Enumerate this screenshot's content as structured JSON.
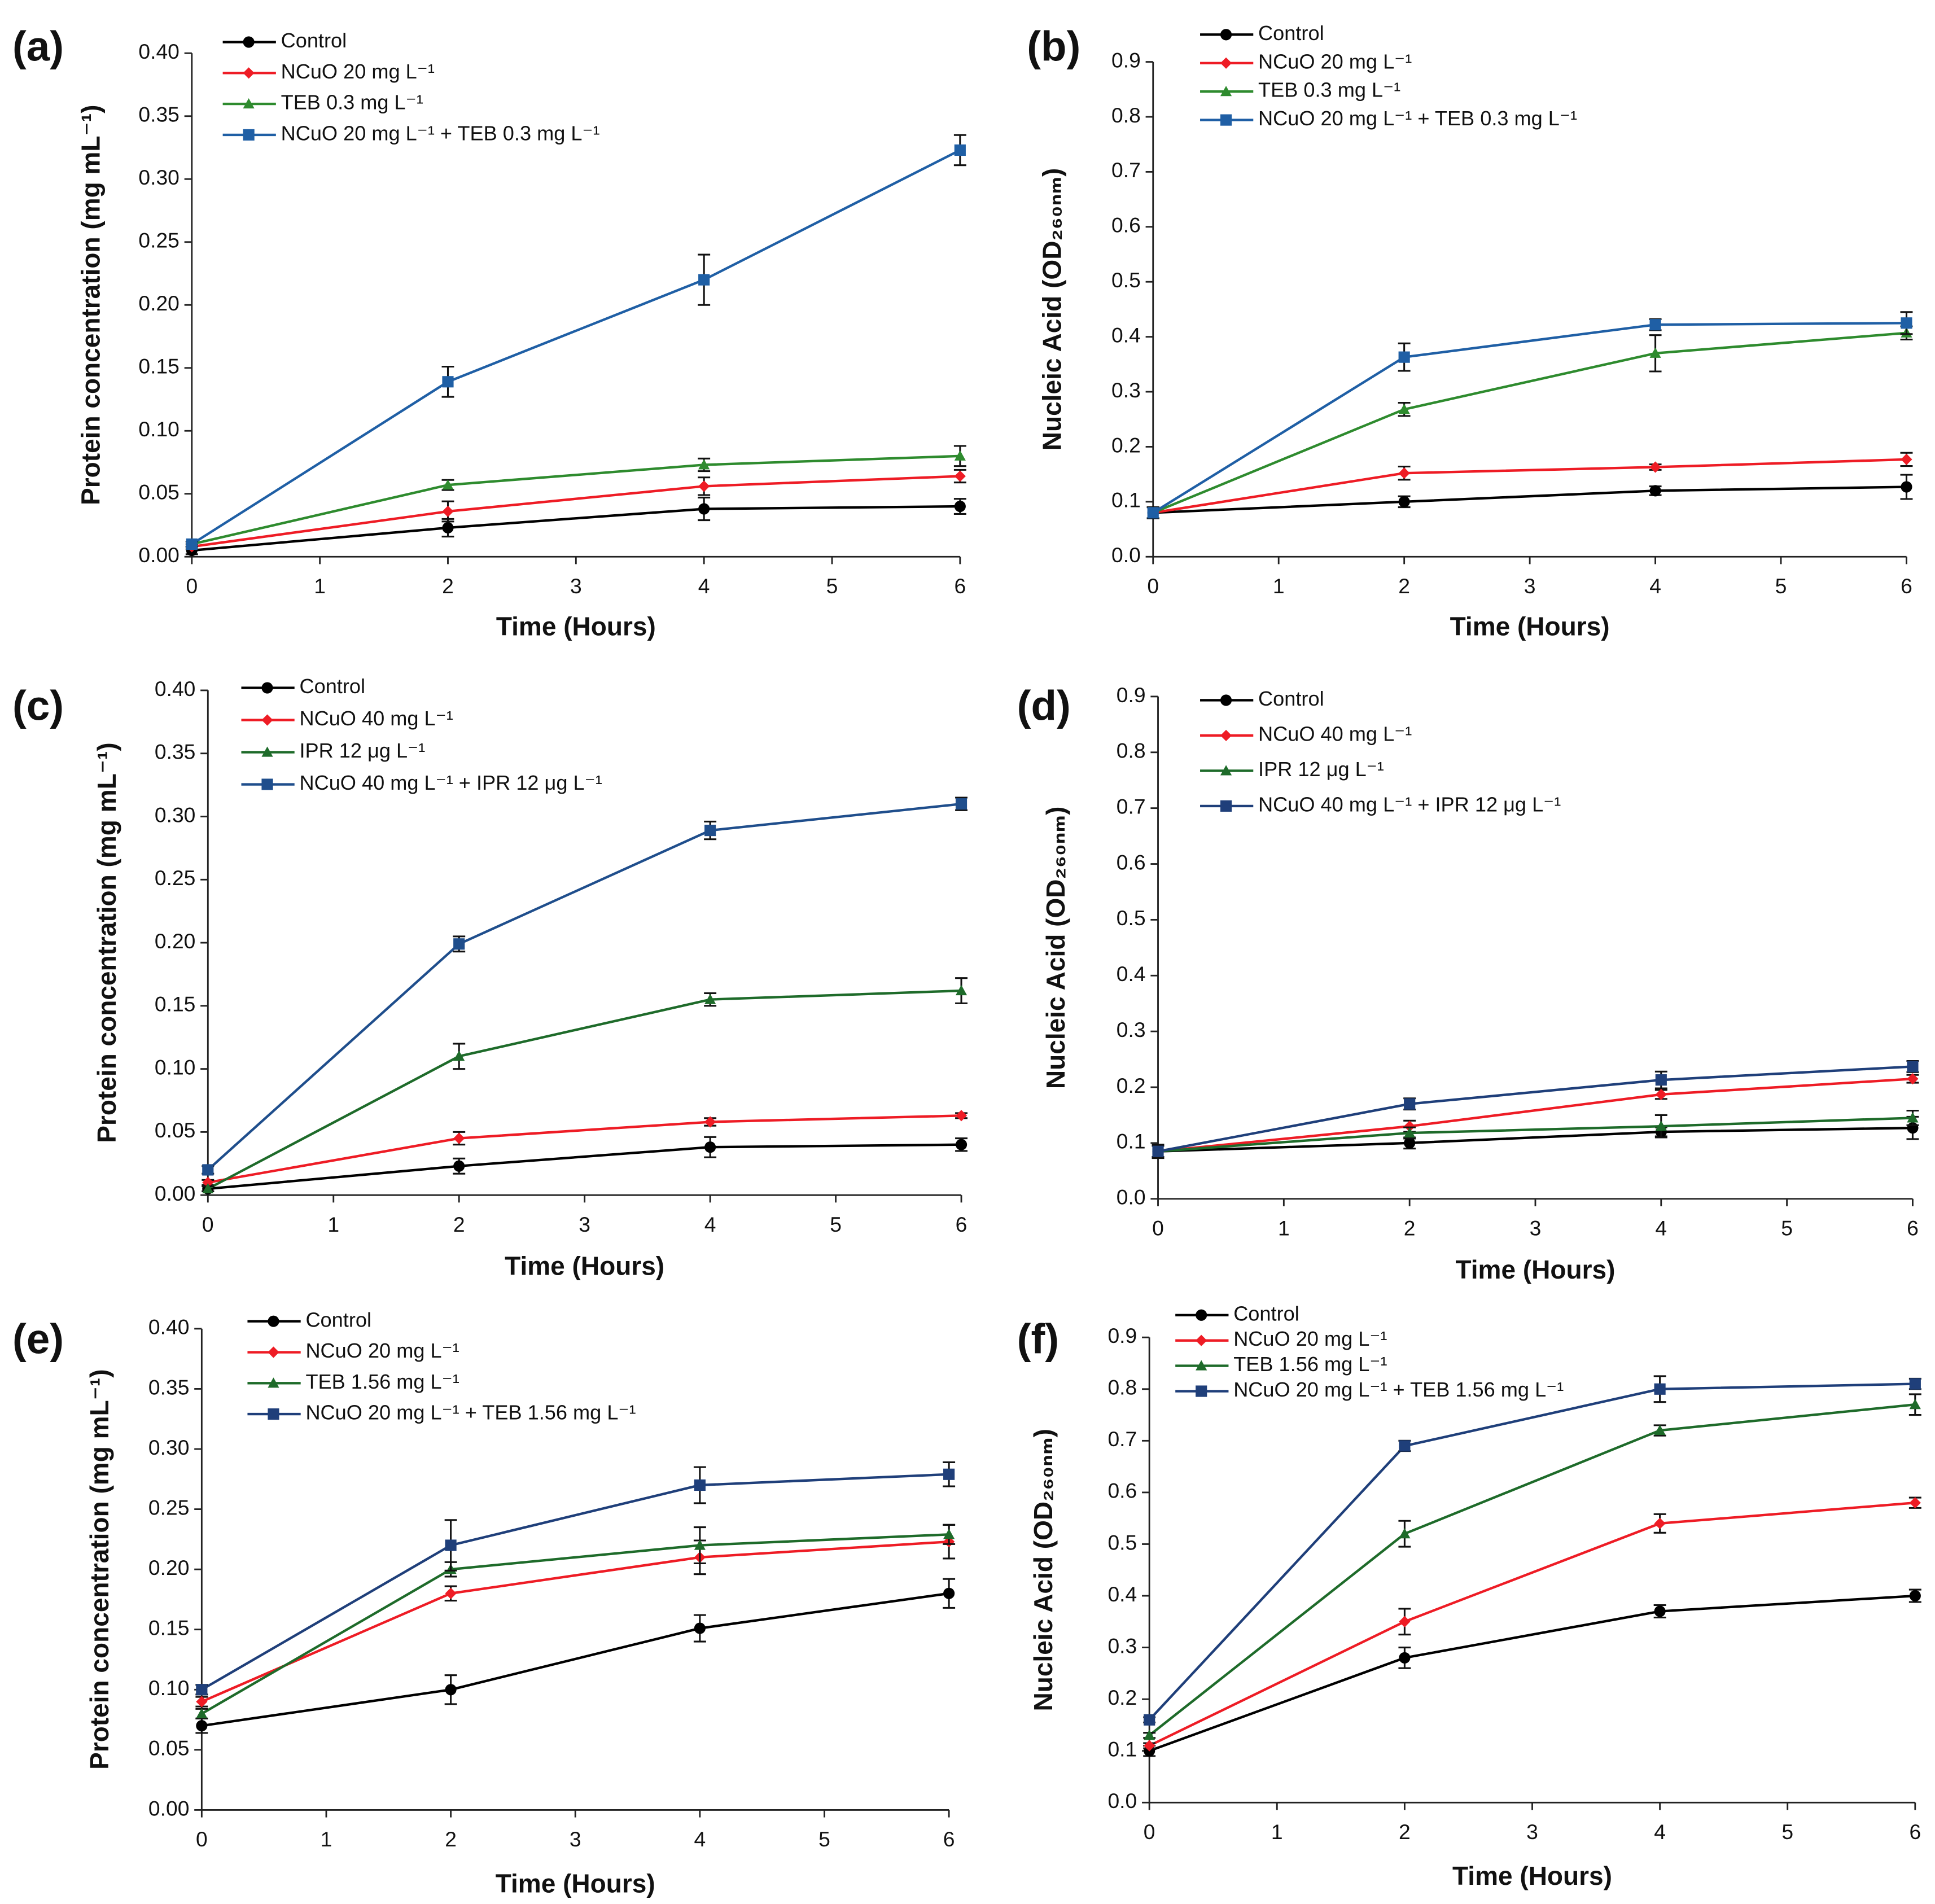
{
  "chart_data": [
    {
      "type": "line",
      "label": "(a)",
      "xlabel": "Time (Hours)",
      "ylabel": "Protein concentration (mg mL⁻¹)",
      "x": [
        0,
        2,
        4,
        6
      ],
      "xlim": [
        0,
        6
      ],
      "xticks": [
        0,
        1,
        2,
        3,
        4,
        5,
        6
      ],
      "ylim": [
        0,
        0.4
      ],
      "yticks": [
        {
          "value": 0,
          "label": "0.00"
        },
        0.05,
        {
          "value": 0.1,
          "label": "0.10"
        },
        0.15,
        {
          "value": 0.2,
          "label": "0.20"
        },
        0.25,
        {
          "value": 0.3,
          "label": "0.30"
        },
        0.35,
        {
          "value": 0.4,
          "label": "0.40"
        }
      ],
      "series": [
        {
          "name": "Control",
          "color": "#000000",
          "marker": "circle",
          "values": [
            0.005,
            0.023,
            0.038,
            0.04
          ],
          "errors": [
            0.003,
            0.007,
            0.009,
            0.006
          ]
        },
        {
          "name": "NCuO 20 mg L⁻¹",
          "color": "#ee1c25",
          "marker": "diamond",
          "values": [
            0.008,
            0.036,
            0.056,
            0.064
          ],
          "errors": [
            0.002,
            0.008,
            0.007,
            0.005
          ]
        },
        {
          "name": "TEB 0.3 mg L⁻¹",
          "color": "#2e8b2e",
          "marker": "triangle",
          "values": [
            0.01,
            0.057,
            0.073,
            0.08
          ],
          "errors": [
            0.002,
            0.004,
            0.005,
            0.008
          ]
        },
        {
          "name": "NCuO 20 mg L⁻¹ + TEB 0.3 mg L⁻¹",
          "color": "#1f5fa5",
          "marker": "square",
          "values": [
            0.01,
            0.139,
            0.22,
            0.323
          ],
          "errors": [
            0.002,
            0.012,
            0.02,
            0.012
          ]
        }
      ]
    },
    {
      "type": "line",
      "label": "(b)",
      "xlabel": "Time (Hours)",
      "ylabel": "Nucleic Acid (OD₂₆₀ₙₘ)",
      "x": [
        0,
        2,
        4,
        6
      ],
      "xlim": [
        0,
        6
      ],
      "xticks": [
        0,
        1,
        2,
        3,
        4,
        5,
        6
      ],
      "ylim": [
        0,
        0.9
      ],
      "yticks": [
        {
          "value": 0,
          "label": "0.0"
        },
        0.1,
        0.2,
        0.3,
        0.4,
        0.5,
        0.6,
        0.7,
        0.8,
        0.9
      ],
      "series": [
        {
          "name": "Control",
          "color": "#000000",
          "marker": "circle",
          "values": [
            0.08,
            0.1,
            0.12,
            0.127
          ],
          "errors": [
            0.01,
            0.01,
            0.008,
            0.022
          ]
        },
        {
          "name": "NCuO 20 mg L⁻¹",
          "color": "#ee1c25",
          "marker": "diamond",
          "values": [
            0.08,
            0.152,
            0.163,
            0.177
          ],
          "errors": [
            0.01,
            0.012,
            0.005,
            0.012
          ]
        },
        {
          "name": "TEB 0.3 mg L⁻¹",
          "color": "#2e8b2e",
          "marker": "triangle",
          "values": [
            0.08,
            0.268,
            0.37,
            0.407
          ],
          "errors": [
            0.01,
            0.012,
            0.033,
            0.012
          ]
        },
        {
          "name": "NCuO 20 mg L⁻¹ + TEB 0.3 mg L⁻¹",
          "color": "#1f5fa5",
          "marker": "square",
          "values": [
            0.08,
            0.363,
            0.422,
            0.425
          ],
          "errors": [
            0.01,
            0.025,
            0.01,
            0.02
          ]
        }
      ]
    },
    {
      "type": "line",
      "label": "(c)",
      "xlabel": "Time (Hours)",
      "ylabel": "Protein concentration (mg mL⁻¹)",
      "x": [
        0,
        2,
        4,
        6
      ],
      "xlim": [
        0,
        6
      ],
      "xticks": [
        0,
        1,
        2,
        3,
        4,
        5,
        6
      ],
      "ylim": [
        0,
        0.4
      ],
      "yticks": [
        {
          "value": 0,
          "label": "0.00"
        },
        0.05,
        {
          "value": 0.1,
          "label": "0.10"
        },
        0.15,
        {
          "value": 0.2,
          "label": "0.20"
        },
        0.25,
        {
          "value": 0.3,
          "label": "0.30"
        },
        0.35,
        {
          "value": 0.4,
          "label": "0.40"
        }
      ],
      "series": [
        {
          "name": "Control",
          "color": "#000000",
          "marker": "circle",
          "values": [
            0.005,
            0.023,
            0.038,
            0.04
          ],
          "errors": [
            0.002,
            0.006,
            0.008,
            0.005
          ]
        },
        {
          "name": "NCuO 40 mg L⁻¹",
          "color": "#ee1c25",
          "marker": "diamond",
          "values": [
            0.01,
            0.045,
            0.058,
            0.063
          ],
          "errors": [
            0.002,
            0.005,
            0.003,
            0.002
          ]
        },
        {
          "name": "IPR 12 μg L⁻¹",
          "color": "#1e6b2a",
          "marker": "triangle",
          "values": [
            0.005,
            0.11,
            0.155,
            0.162
          ],
          "errors": [
            0.002,
            0.01,
            0.005,
            0.01
          ]
        },
        {
          "name": "NCuO 40 mg L⁻¹ + IPR 12 μg L⁻¹",
          "color": "#1f4e8c",
          "marker": "square",
          "values": [
            0.02,
            0.199,
            0.289,
            0.31
          ],
          "errors": [
            0.003,
            0.006,
            0.007,
            0.005
          ]
        }
      ]
    },
    {
      "type": "line",
      "label": "(d)",
      "xlabel": "Time (Hours)",
      "ylabel": "Nucleic Acid (OD₂₆₀ₙₘ)",
      "x": [
        0,
        2,
        4,
        6
      ],
      "xlim": [
        0,
        6
      ],
      "xticks": [
        0,
        1,
        2,
        3,
        4,
        5,
        6
      ],
      "ylim": [
        0,
        0.9
      ],
      "yticks": [
        {
          "value": 0,
          "label": "0.0"
        },
        0.1,
        0.2,
        0.3,
        0.4,
        0.5,
        0.6,
        0.7,
        0.8,
        0.9
      ],
      "series": [
        {
          "name": "Control",
          "color": "#000000",
          "marker": "circle",
          "values": [
            0.085,
            0.1,
            0.12,
            0.127
          ],
          "errors": [
            0.012,
            0.01,
            0.008,
            0.02
          ]
        },
        {
          "name": "NCuO 40 mg L⁻¹",
          "color": "#ee1c25",
          "marker": "diamond",
          "values": [
            0.085,
            0.13,
            0.187,
            0.215
          ],
          "errors": [
            0.01,
            0.01,
            0.008,
            0.007
          ]
        },
        {
          "name": "IPR 12 μg L⁻¹",
          "color": "#1e6b2a",
          "marker": "triangle",
          "values": [
            0.085,
            0.118,
            0.13,
            0.145
          ],
          "errors": [
            0.01,
            0.01,
            0.02,
            0.013
          ]
        },
        {
          "name": "NCuO 40 mg L⁻¹ + IPR 12 μg L⁻¹",
          "color": "#1f3f7a",
          "marker": "square",
          "values": [
            0.085,
            0.17,
            0.213,
            0.237
          ],
          "errors": [
            0.01,
            0.01,
            0.015,
            0.01
          ]
        }
      ]
    },
    {
      "type": "line",
      "label": "(e)",
      "xlabel": "Time (Hours)",
      "ylabel": "Protein concentration (mg mL⁻¹)",
      "x": [
        0,
        2,
        4,
        6
      ],
      "xlim": [
        0,
        6
      ],
      "xticks": [
        0,
        1,
        2,
        3,
        4,
        5,
        6
      ],
      "ylim": [
        0,
        0.4
      ],
      "yticks": [
        {
          "value": 0,
          "label": "0.00"
        },
        0.05,
        {
          "value": 0.1,
          "label": "0.10"
        },
        0.15,
        {
          "value": 0.2,
          "label": "0.20"
        },
        0.25,
        {
          "value": 0.3,
          "label": "0.30"
        },
        0.35,
        {
          "value": 0.4,
          "label": "0.40"
        }
      ],
      "series": [
        {
          "name": "Control",
          "color": "#000000",
          "marker": "circle",
          "values": [
            0.07,
            0.1,
            0.151,
            0.18
          ],
          "errors": [
            0.006,
            0.012,
            0.011,
            0.012
          ]
        },
        {
          "name": "NCuO 20 mg L⁻¹",
          "color": "#ee1c25",
          "marker": "diamond",
          "values": [
            0.09,
            0.18,
            0.21,
            0.223
          ],
          "errors": [
            0.004,
            0.006,
            0.014,
            0.014
          ]
        },
        {
          "name": "TEB 1.56 mg L⁻¹",
          "color": "#1e6b2a",
          "marker": "triangle",
          "values": [
            0.08,
            0.2,
            0.22,
            0.229
          ],
          "errors": [
            0.004,
            0.006,
            0.015,
            0.008
          ]
        },
        {
          "name": "NCuO 20 mg L⁻¹ + TEB 1.56 mg L⁻¹",
          "color": "#1f3f7a",
          "marker": "square",
          "values": [
            0.1,
            0.22,
            0.27,
            0.279
          ],
          "errors": [
            0.004,
            0.021,
            0.015,
            0.01
          ]
        }
      ]
    },
    {
      "type": "line",
      "label": "(f)",
      "xlabel": "Time (Hours)",
      "ylabel": "Nucleic Acid (OD₂₆₀ₙₘ)",
      "x": [
        0,
        2,
        4,
        6
      ],
      "xlim": [
        0,
        6
      ],
      "xticks": [
        0,
        1,
        2,
        3,
        4,
        5,
        6
      ],
      "ylim": [
        0,
        0.9
      ],
      "yticks": [
        {
          "value": 0,
          "label": "0.0"
        },
        0.1,
        0.2,
        0.3,
        0.4,
        0.5,
        0.6,
        0.7,
        0.8,
        0.9
      ],
      "series": [
        {
          "name": "Control",
          "color": "#000000",
          "marker": "circle",
          "values": [
            0.1,
            0.28,
            0.37,
            0.4
          ],
          "errors": [
            0.01,
            0.02,
            0.012,
            0.012
          ]
        },
        {
          "name": "NCuO 20 mg L⁻¹",
          "color": "#ee1c25",
          "marker": "diamond",
          "values": [
            0.11,
            0.35,
            0.54,
            0.58
          ],
          "errors": [
            0.005,
            0.025,
            0.018,
            0.01
          ]
        },
        {
          "name": "TEB 1.56 mg L⁻¹",
          "color": "#1e6b2a",
          "marker": "triangle",
          "values": [
            0.13,
            0.52,
            0.72,
            0.77
          ],
          "errors": [
            0.005,
            0.025,
            0.01,
            0.02
          ]
        },
        {
          "name": "NCuO 20 mg L⁻¹ + TEB 1.56 mg L⁻¹",
          "color": "#1f3f7a",
          "marker": "square",
          "values": [
            0.16,
            0.69,
            0.8,
            0.81
          ],
          "errors": [
            0.005,
            0.01,
            0.025,
            0.01
          ]
        }
      ]
    }
  ]
}
